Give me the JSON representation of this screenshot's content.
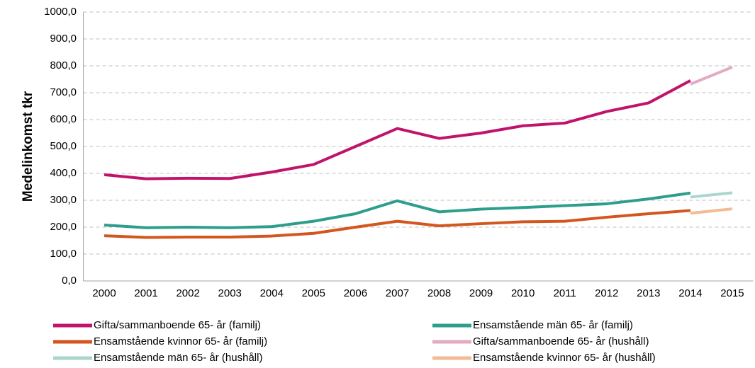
{
  "chart_data": {
    "type": "line",
    "y_label": "Medelinkomst tkr",
    "categories": [
      "2000",
      "2001",
      "2002",
      "2003",
      "2004",
      "2005",
      "2006",
      "2007",
      "2008",
      "2009",
      "2010",
      "2011",
      "2012",
      "2013",
      "2014",
      "2015"
    ],
    "series": [
      {
        "name": "Gifta/sammanboende 65- år (familj)",
        "color": "#c0136c",
        "values": [
          395,
          380,
          382,
          381,
          405,
          433,
          500,
          567,
          530,
          550,
          577,
          587,
          630,
          662,
          745,
          null
        ]
      },
      {
        "name": "Ensamstående män 65- år (familj)",
        "color": "#2e9e8c",
        "values": [
          208,
          198,
          200,
          198,
          202,
          222,
          250,
          298,
          257,
          267,
          273,
          280,
          287,
          305,
          327,
          null
        ]
      },
      {
        "name": "Ensamstående kvinnor 65- år (familj)",
        "color": "#d2561e",
        "values": [
          168,
          162,
          163,
          163,
          167,
          177,
          200,
          222,
          205,
          213,
          220,
          222,
          237,
          250,
          262,
          null
        ]
      },
      {
        "name": "Gifta/sammanboende 65- år (hushåll)",
        "color": "#e3aac3",
        "values": [
          null,
          null,
          null,
          null,
          null,
          null,
          null,
          null,
          null,
          null,
          null,
          null,
          null,
          null,
          732,
          795
        ]
      },
      {
        "name": "Ensamstående män 65- år (hushåll)",
        "color": "#aad6ce",
        "values": [
          null,
          null,
          null,
          null,
          null,
          null,
          null,
          null,
          null,
          null,
          null,
          null,
          null,
          null,
          312,
          328
        ]
      },
      {
        "name": "Ensamstående kvinnor 65- år (hushåll)",
        "color": "#f2bb95",
        "values": [
          null,
          null,
          null,
          null,
          null,
          null,
          null,
          null,
          null,
          null,
          null,
          null,
          null,
          null,
          252,
          268
        ]
      }
    ],
    "ylim": [
      0,
      1000
    ],
    "yticks": [
      {
        "value": 0,
        "label": "0,0"
      },
      {
        "value": 100,
        "label": "100,0"
      },
      {
        "value": 200,
        "label": "200,0"
      },
      {
        "value": 300,
        "label": "300,0"
      },
      {
        "value": 400,
        "label": "400,0"
      },
      {
        "value": 500,
        "label": "500,0"
      },
      {
        "value": 600,
        "label": "600,0"
      },
      {
        "value": 700,
        "label": "700,0"
      },
      {
        "value": 800,
        "label": "800,0"
      },
      {
        "value": 900,
        "label": "900,0"
      },
      {
        "value": 1000,
        "label": "1000,0"
      }
    ],
    "grid": true,
    "legend": "bottom"
  }
}
